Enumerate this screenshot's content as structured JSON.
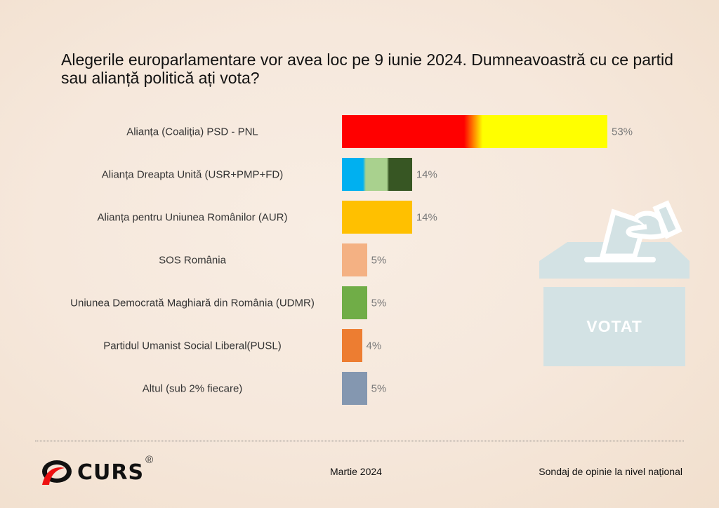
{
  "title": "Alegerile europarlamentare vor avea loc pe 9 iunie 2024. Dumneavoastră cu ce partid sau alianță politică ați vota?",
  "chart_data": {
    "type": "bar",
    "orientation": "horizontal",
    "title": "Alegerile europarlamentare vor avea loc pe 9 iunie 2024. Dumneavoastră cu ce partid sau alianță politică ați vota?",
    "categories": [
      "Alianța (Coaliția) PSD - PNL",
      "Alianța Dreapta Unită (USR+PMP+FD)",
      "Alianța pentru Uniunea Românilor (AUR)",
      "SOS România",
      "Uniunea Democrată Maghiară din România (UDMR)",
      "Partidul Umanist Social Liberal(PUSL)",
      "Altul (sub 2% fiecare)"
    ],
    "values": [
      53,
      14,
      14,
      5,
      5,
      4,
      5
    ],
    "value_labels": [
      "53%",
      "14%",
      "14%",
      "5%",
      "5%",
      "4%",
      "5%"
    ],
    "colors": [
      [
        "#ff0000",
        "#ffff00"
      ],
      [
        "#00b0f0",
        "#a9d18e",
        "#375623"
      ],
      [
        "#ffc000"
      ],
      [
        "#f4b183"
      ],
      [
        "#70ad47"
      ],
      [
        "#ed7d31"
      ],
      [
        "#8497b0"
      ]
    ],
    "unit": "%",
    "xlim": [
      0,
      53
    ],
    "grid": false
  },
  "image_text": "VOTAT",
  "footer": {
    "brand": "CURS",
    "reg": "®",
    "date": "Martie 2024",
    "note": "Sondaj de opinie la nivel național"
  }
}
